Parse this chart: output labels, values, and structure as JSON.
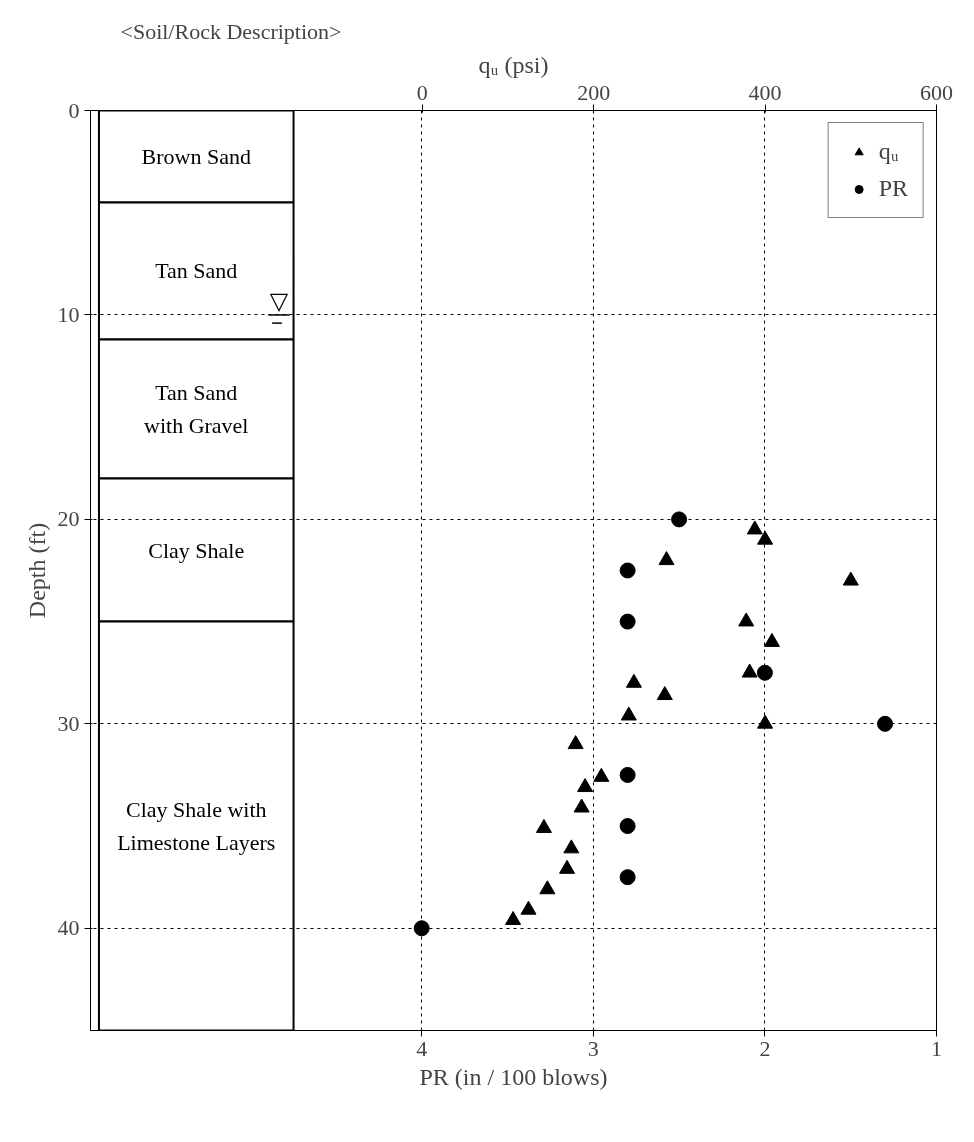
{
  "chart_data": {
    "type": "scatter",
    "xlabel": "PR (in / 100 blows)",
    "x2label": "qᵤ (psi)",
    "ylabel": "Depth (ft)",
    "xlim": [
      5.93,
      1
    ],
    "xticks": [
      4,
      3,
      2,
      1
    ],
    "x2lim": [
      -387,
      600
    ],
    "x2ticks": [
      0,
      200,
      400,
      600
    ],
    "ylim": [
      45,
      0
    ],
    "yticks": [
      0,
      10,
      20,
      30,
      40
    ],
    "grid": true,
    "legend": "top right",
    "annotations": [
      "<Soil/Rock Description>"
    ],
    "bands": [
      {
        "axis": "y",
        "from": 0,
        "to": 4.5,
        "label": "Brown Sand"
      },
      {
        "axis": "y",
        "from": 4.5,
        "to": 11.2,
        "label": "Tan Sand"
      },
      {
        "axis": "y",
        "from": 11.2,
        "to": 18,
        "label": "Tan Sand\nwith Gravel"
      },
      {
        "axis": "y",
        "from": 18,
        "to": 25,
        "label": "Clay Shale"
      },
      {
        "axis": "y",
        "from": 25,
        "to": 45,
        "label": "Clay Shale with\nLimestone Layers"
      }
    ],
    "ref_lines": [
      {
        "axis": "y",
        "value": 10,
        "label": "▽"
      }
    ],
    "series": [
      {
        "name": "qᵤ",
        "axis": "x2",
        "color": "#000000",
        "marker": "triangle",
        "x": [
          388,
          400,
          285,
          500,
          378,
          408,
          382,
          247,
          283,
          241,
          400,
          179,
          209,
          190,
          186,
          142,
          174,
          169,
          146,
          124,
          106
        ],
        "values": [
          20.5,
          21,
          22,
          23,
          25,
          26,
          27.5,
          28,
          28.6,
          29.6,
          30,
          31,
          32.6,
          33.1,
          34.1,
          35.1,
          36.1,
          37.1,
          38.1,
          39.1,
          39.6
        ]
      },
      {
        "name": "PR",
        "color": "#000000",
        "marker": "circle",
        "x": [
          2.5,
          2.8,
          2.8,
          2.0,
          1.3,
          2.8,
          2.8,
          2.8,
          4.0
        ],
        "values": [
          20,
          22.5,
          25,
          27.5,
          30,
          32.5,
          35,
          37.5,
          40
        ]
      }
    ]
  }
}
